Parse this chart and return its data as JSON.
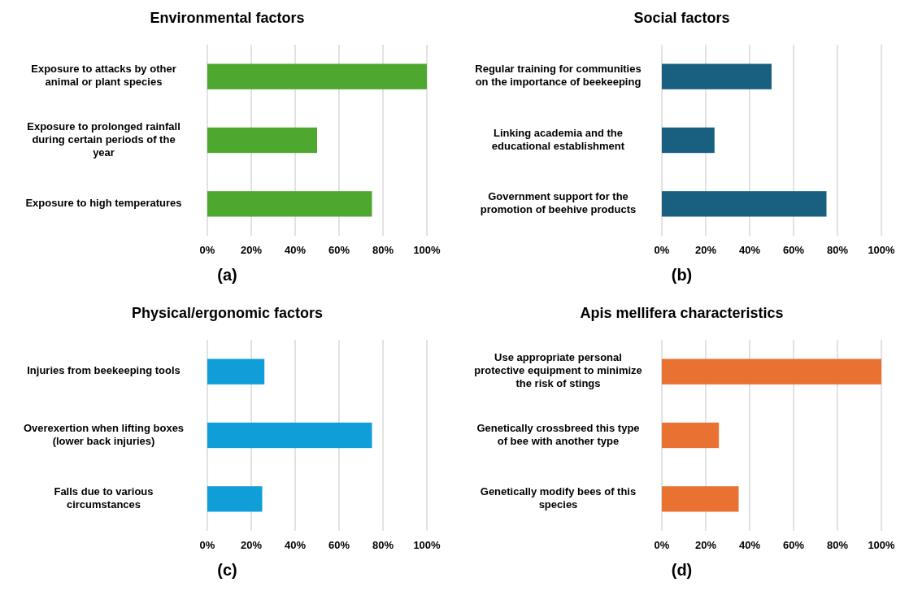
{
  "chart_data": [
    {
      "type": "bar",
      "orientation": "horizontal",
      "title": "Environmental factors",
      "categories": [
        "Exposure to attacks by other animal or plant species",
        "Exposure to prolonged rainfall during certain periods of the year",
        "Exposure to high temperatures"
      ],
      "series": [
        {
          "color": "#4ea72e",
          "values": [
            100,
            50,
            75
          ]
        }
      ],
      "xlim": [
        0,
        100
      ],
      "xticks": [
        {
          "value": 0,
          "label": "0%"
        },
        {
          "value": 20,
          "label": "20%"
        },
        {
          "value": 40,
          "label": "40%"
        },
        {
          "value": 60,
          "label": "60%"
        },
        {
          "value": 80,
          "label": "80%"
        },
        {
          "value": 100,
          "label": "100%"
        }
      ],
      "grid": "x",
      "annotations": [
        "(a)"
      ]
    },
    {
      "type": "bar",
      "orientation": "horizontal",
      "title": "Social factors",
      "categories": [
        "Regular training for communities on the importance of beekeeping",
        "Linking academia and the educational establishment",
        "Government support for the promotion of beehive products"
      ],
      "series": [
        {
          "color": "#196080",
          "values": [
            50,
            24,
            75
          ]
        }
      ],
      "xlim": [
        0,
        100
      ],
      "xticks": [
        {
          "value": 0,
          "label": "0%"
        },
        {
          "value": 20,
          "label": "20%"
        },
        {
          "value": 40,
          "label": "40%"
        },
        {
          "value": 60,
          "label": "60%"
        },
        {
          "value": 80,
          "label": "80%"
        },
        {
          "value": 100,
          "label": "100%"
        }
      ],
      "grid": "x",
      "annotations": [
        "(b)"
      ]
    },
    {
      "type": "bar",
      "orientation": "horizontal",
      "title": "Physical/ergonomic factors",
      "categories": [
        "Injuries from beekeeping tools",
        "Overexertion when lifting boxes (lower back injuries)",
        "Falls due to various circumstances"
      ],
      "series": [
        {
          "color": "#109ed8",
          "values": [
            26,
            75,
            25
          ]
        }
      ],
      "xlim": [
        0,
        100
      ],
      "xticks": [
        {
          "value": 0,
          "label": "0%"
        },
        {
          "value": 20,
          "label": "20%"
        },
        {
          "value": 40,
          "label": "40%"
        },
        {
          "value": 60,
          "label": "60%"
        },
        {
          "value": 80,
          "label": "80%"
        },
        {
          "value": 100,
          "label": "100%"
        }
      ],
      "grid": "x",
      "annotations": [
        "(c)"
      ]
    },
    {
      "type": "bar",
      "orientation": "horizontal",
      "title": "Apis mellifera characteristics",
      "categories": [
        "Use appropriate personal protective equipment to minimize the risk of stings",
        "Genetically crossbreed this type of bee with another type",
        "Genetically modify bees of this species"
      ],
      "series": [
        {
          "color": "#e97132",
          "values": [
            100,
            26,
            35
          ]
        }
      ],
      "xlim": [
        0,
        100
      ],
      "xticks": [
        {
          "value": 0,
          "label": "0%"
        },
        {
          "value": 20,
          "label": "20%"
        },
        {
          "value": 40,
          "label": "40%"
        },
        {
          "value": 60,
          "label": "60%"
        },
        {
          "value": 80,
          "label": "80%"
        },
        {
          "value": 100,
          "label": "100%"
        }
      ],
      "grid": "x",
      "annotations": [
        "(d)"
      ]
    }
  ]
}
